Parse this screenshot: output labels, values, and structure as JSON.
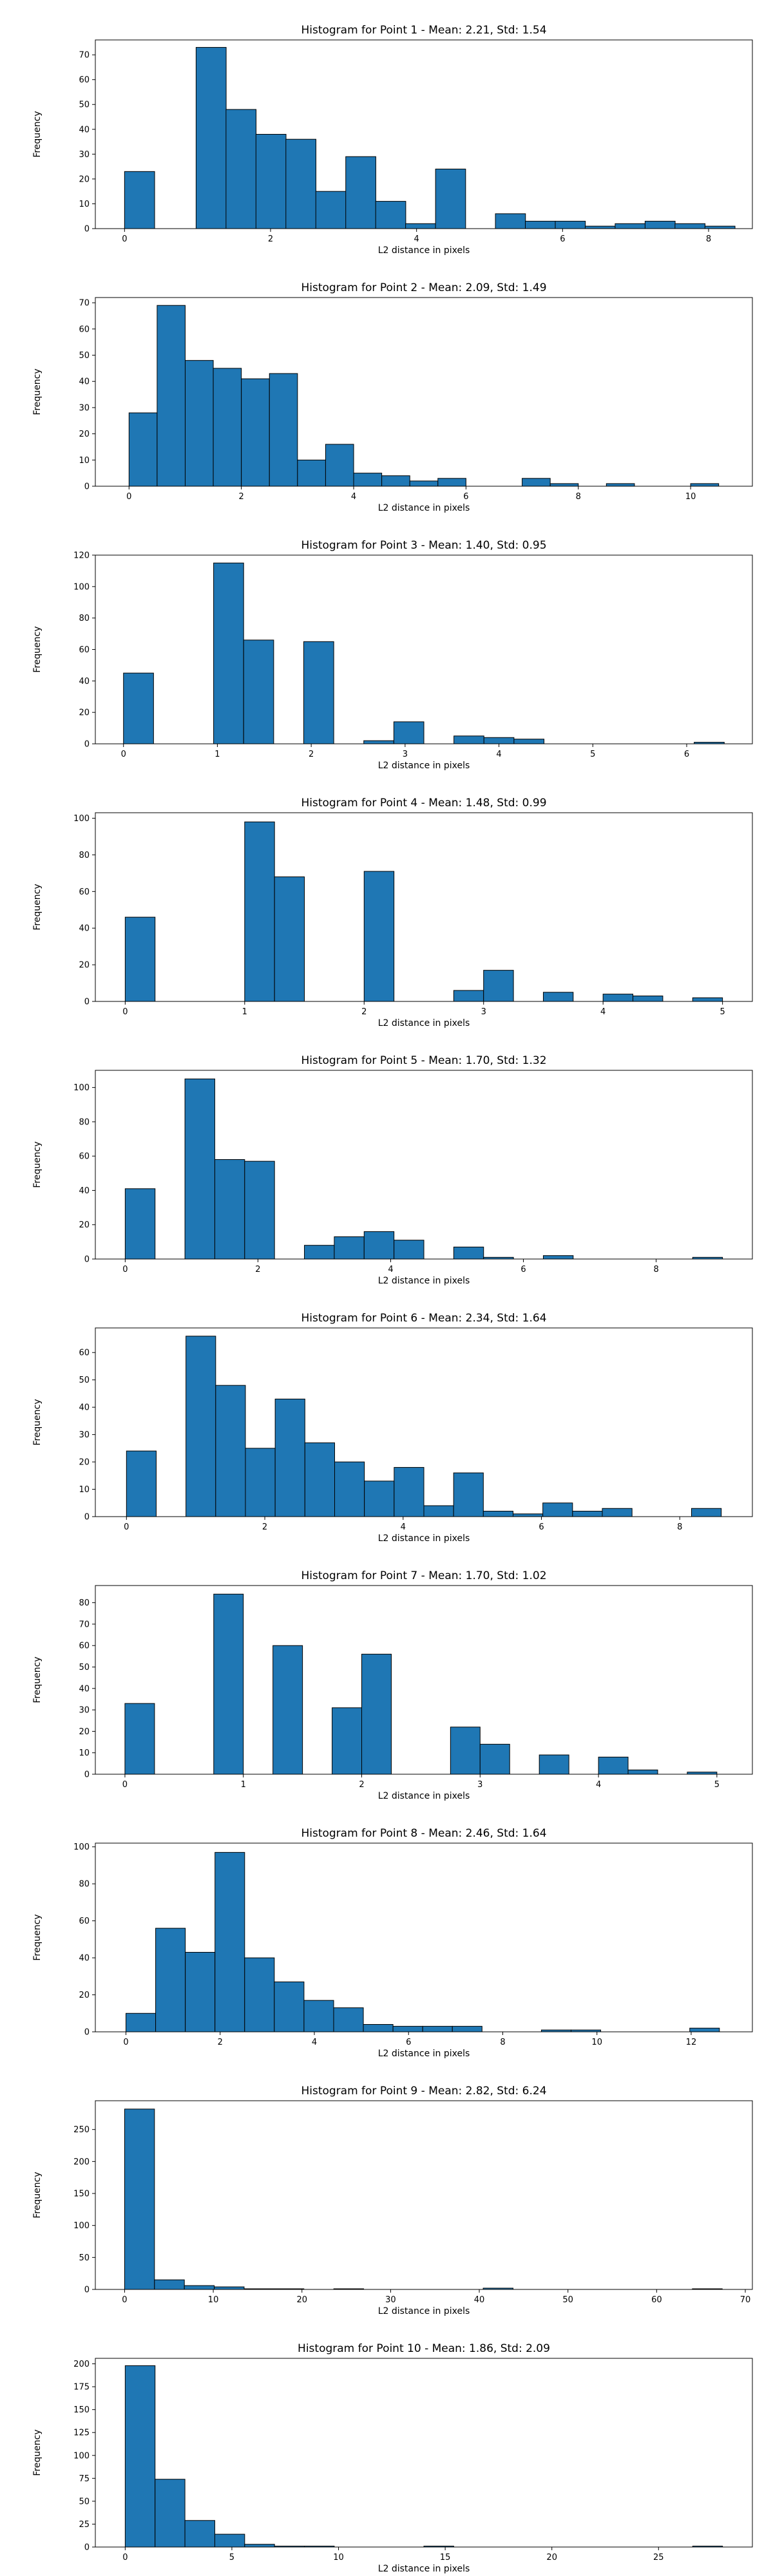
{
  "chart_data": [
    {
      "type": "bar",
      "title": "Histogram for Point 1 - Mean: 2.21, Std: 1.54",
      "xlabel": "L2 distance in pixels",
      "ylabel": "Frequency",
      "xlim": [
        -0.4,
        8.6
      ],
      "ylim": [
        0,
        76
      ],
      "xticks": [
        0,
        2,
        4,
        6,
        8
      ],
      "yticks": [
        0,
        10,
        20,
        30,
        40,
        50,
        60,
        70
      ],
      "bin_width": 0.412,
      "x": [
        0,
        0.98,
        1.39,
        1.8,
        2.21,
        2.62,
        3.03,
        3.44,
        3.85,
        4.26,
        4.67,
        5.08,
        5.49,
        5.9,
        6.31,
        6.72,
        7.13,
        7.54,
        7.95
      ],
      "values": [
        23,
        73,
        48,
        38,
        36,
        15,
        29,
        11,
        2,
        24,
        0,
        6,
        3,
        3,
        1,
        2,
        3,
        2,
        1
      ]
    },
    {
      "type": "bar",
      "title": "Histogram for Point 2 - Mean: 2.09, Std: 1.49",
      "xlabel": "L2 distance in pixels",
      "ylabel": "Frequency",
      "xlim": [
        -0.6,
        11.1
      ],
      "ylim": [
        0,
        72
      ],
      "xticks": [
        0,
        2,
        4,
        6,
        8,
        10
      ],
      "yticks": [
        0,
        10,
        20,
        30,
        40,
        50,
        60,
        70
      ],
      "bin_width": 0.5,
      "x": [
        0,
        0.5,
        1.0,
        1.5,
        2.0,
        2.5,
        3.0,
        3.5,
        4.0,
        4.5,
        5.0,
        5.5,
        6.0,
        6.5,
        7.0,
        7.5,
        8.0,
        8.5,
        9.0,
        9.5,
        10.0
      ],
      "values": [
        28,
        69,
        48,
        45,
        41,
        43,
        10,
        16,
        5,
        4,
        2,
        3,
        0,
        0,
        3,
        1,
        0,
        1,
        0,
        0,
        1
      ]
    },
    {
      "type": "bar",
      "title": "Histogram for Point 3 - Mean: 1.40, Std: 0.95",
      "xlabel": "L2 distance in pixels",
      "ylabel": "Frequency",
      "xlim": [
        -0.3,
        6.7
      ],
      "ylim": [
        0,
        120
      ],
      "xticks": [
        0,
        1,
        2,
        3,
        4,
        5,
        6
      ],
      "yticks": [
        0,
        20,
        40,
        60,
        80,
        100,
        120
      ],
      "bin_width": 0.32,
      "x": [
        0,
        0.32,
        0.64,
        0.96,
        1.28,
        1.6,
        1.92,
        2.24,
        2.56,
        2.88,
        3.2,
        3.52,
        3.84,
        4.16,
        4.48,
        4.8,
        5.12,
        5.44,
        5.76,
        6.08
      ],
      "values": [
        45,
        0,
        0,
        115,
        66,
        0,
        65,
        0,
        2,
        14,
        0,
        5,
        4,
        3,
        0,
        0,
        0,
        0,
        0,
        1
      ]
    },
    {
      "type": "bar",
      "title": "Histogram for Point 4 - Mean: 1.48, Std: 0.99",
      "xlabel": "L2 distance in pixels",
      "ylabel": "Frequency",
      "xlim": [
        -0.25,
        5.25
      ],
      "ylim": [
        0,
        103
      ],
      "xticks": [
        0,
        1,
        2,
        3,
        4,
        5
      ],
      "yticks": [
        0,
        20,
        40,
        60,
        80,
        100
      ],
      "bin_width": 0.25,
      "x": [
        0,
        0.25,
        0.5,
        0.75,
        1.0,
        1.25,
        1.5,
        1.75,
        2.0,
        2.25,
        2.5,
        2.75,
        3.0,
        3.25,
        3.5,
        3.75,
        4.0,
        4.25,
        4.5,
        4.75
      ],
      "values": [
        46,
        0,
        0,
        0,
        98,
        68,
        0,
        0,
        71,
        0,
        0,
        6,
        17,
        0,
        5,
        0,
        4,
        3,
        0,
        2
      ]
    },
    {
      "type": "bar",
      "title": "Histogram for Point 5 - Mean: 1.70, Std: 1.32",
      "xlabel": "L2 distance in pixels",
      "ylabel": "Frequency",
      "xlim": [
        -0.45,
        9.45
      ],
      "ylim": [
        0,
        110
      ],
      "xticks": [
        0,
        2,
        4,
        6,
        8
      ],
      "yticks": [
        0,
        20,
        40,
        60,
        80,
        100
      ],
      "bin_width": 0.45,
      "x": [
        0,
        0.45,
        0.9,
        1.35,
        1.8,
        2.25,
        2.7,
        3.15,
        3.6,
        4.05,
        4.5,
        4.95,
        5.4,
        5.85,
        6.3,
        6.75,
        7.2,
        7.65,
        8.1,
        8.55
      ],
      "values": [
        41,
        0,
        105,
        58,
        57,
        0,
        8,
        13,
        16,
        11,
        0,
        7,
        1,
        0,
        2,
        0,
        0,
        0,
        0,
        1
      ]
    },
    {
      "type": "bar",
      "title": "Histogram for Point 6 - Mean: 2.34, Std: 1.64",
      "xlabel": "L2 distance in pixels",
      "ylabel": "Frequency",
      "xlim": [
        -0.45,
        9.05
      ],
      "ylim": [
        0,
        69
      ],
      "xticks": [
        0,
        2,
        4,
        6,
        8
      ],
      "yticks": [
        0,
        10,
        20,
        30,
        40,
        50,
        60
      ],
      "bin_width": 0.43,
      "x": [
        0,
        0.43,
        0.86,
        1.29,
        1.72,
        2.15,
        2.58,
        3.01,
        3.44,
        3.87,
        4.3,
        4.73,
        5.16,
        5.59,
        6.02,
        6.45,
        6.88,
        7.31,
        7.74,
        8.17
      ],
      "values": [
        24,
        0,
        66,
        48,
        25,
        43,
        27,
        20,
        13,
        18,
        4,
        16,
        2,
        1,
        5,
        2,
        3,
        0,
        0,
        3
      ]
    },
    {
      "type": "bar",
      "title": "Histogram for Point 7 - Mean: 1.70, Std: 1.02",
      "xlabel": "L2 distance in pixels",
      "ylabel": "Frequency",
      "xlim": [
        -0.25,
        5.3
      ],
      "ylim": [
        0,
        88
      ],
      "xticks": [
        0,
        1,
        2,
        3,
        4,
        5
      ],
      "yticks": [
        0,
        10,
        20,
        30,
        40,
        50,
        60,
        70,
        80
      ],
      "bin_width": 0.25,
      "x": [
        0,
        0.25,
        0.5,
        0.75,
        1.0,
        1.25,
        1.5,
        1.75,
        2.0,
        2.25,
        2.5,
        2.75,
        3.0,
        3.25,
        3.5,
        3.75,
        4.0,
        4.25,
        4.5,
        4.75
      ],
      "values": [
        33,
        0,
        0,
        84,
        0,
        60,
        0,
        31,
        56,
        0,
        0,
        22,
        14,
        0,
        9,
        0,
        8,
        2,
        0,
        1
      ]
    },
    {
      "type": "bar",
      "title": "Histogram for Point 8 - Mean: 2.46, Std: 1.64",
      "xlabel": "L2 distance in pixels",
      "ylabel": "Frequency",
      "xlim": [
        -0.65,
        13.3
      ],
      "ylim": [
        0,
        102
      ],
      "xticks": [
        0,
        2,
        4,
        6,
        8,
        10,
        12
      ],
      "yticks": [
        0,
        20,
        40,
        60,
        80,
        100
      ],
      "bin_width": 0.63,
      "x": [
        0,
        0.63,
        1.26,
        1.89,
        2.52,
        3.15,
        3.78,
        4.41,
        5.04,
        5.67,
        6.3,
        6.93,
        7.56,
        8.19,
        8.82,
        9.45,
        10.08,
        10.71,
        11.34,
        11.97
      ],
      "values": [
        10,
        56,
        43,
        97,
        40,
        27,
        17,
        13,
        4,
        3,
        3,
        3,
        0,
        0,
        1,
        1,
        0,
        0,
        0,
        2
      ]
    },
    {
      "type": "bar",
      "title": "Histogram for Point 9 - Mean: 2.82, Std: 6.24",
      "xlabel": "L2 distance in pixels",
      "ylabel": "Frequency",
      "xlim": [
        -3.3,
        70.8
      ],
      "ylim": [
        0,
        295
      ],
      "xticks": [
        0,
        10,
        20,
        30,
        40,
        50,
        60,
        70
      ],
      "yticks": [
        0,
        50,
        100,
        150,
        200,
        250
      ],
      "bin_width": 3.37,
      "x": [
        0,
        3.37,
        6.74,
        10.11,
        13.48,
        16.85,
        20.22,
        23.59,
        26.96,
        30.33,
        33.7,
        37.07,
        40.44,
        43.81,
        47.18,
        50.55,
        53.92,
        57.29,
        60.66,
        64.03
      ],
      "values": [
        282,
        15,
        6,
        4,
        1,
        1,
        0,
        1,
        0,
        0,
        0,
        0,
        2,
        0,
        0,
        0,
        0,
        0,
        0,
        1
      ]
    },
    {
      "type": "bar",
      "title": "Histogram for Point 10 - Mean: 1.86, Std: 2.09",
      "xlabel": "L2 distance in pixels",
      "ylabel": "Frequency",
      "xlim": [
        -1.4,
        29.4
      ],
      "ylim": [
        0,
        206
      ],
      "xticks": [
        0,
        5,
        10,
        15,
        20,
        25
      ],
      "yticks": [
        0,
        25,
        50,
        75,
        100,
        125,
        150,
        175,
        200
      ],
      "bin_width": 1.4,
      "x": [
        0,
        1.4,
        2.8,
        4.2,
        5.6,
        7.0,
        8.4,
        9.8,
        11.2,
        12.6,
        14.0,
        15.4,
        16.8,
        18.2,
        19.6,
        21.0,
        22.4,
        23.8,
        25.2,
        26.6
      ],
      "values": [
        198,
        74,
        29,
        14,
        3,
        1,
        1,
        0,
        0,
        0,
        1,
        0,
        0,
        0,
        0,
        0,
        0,
        0,
        0,
        1
      ]
    }
  ]
}
